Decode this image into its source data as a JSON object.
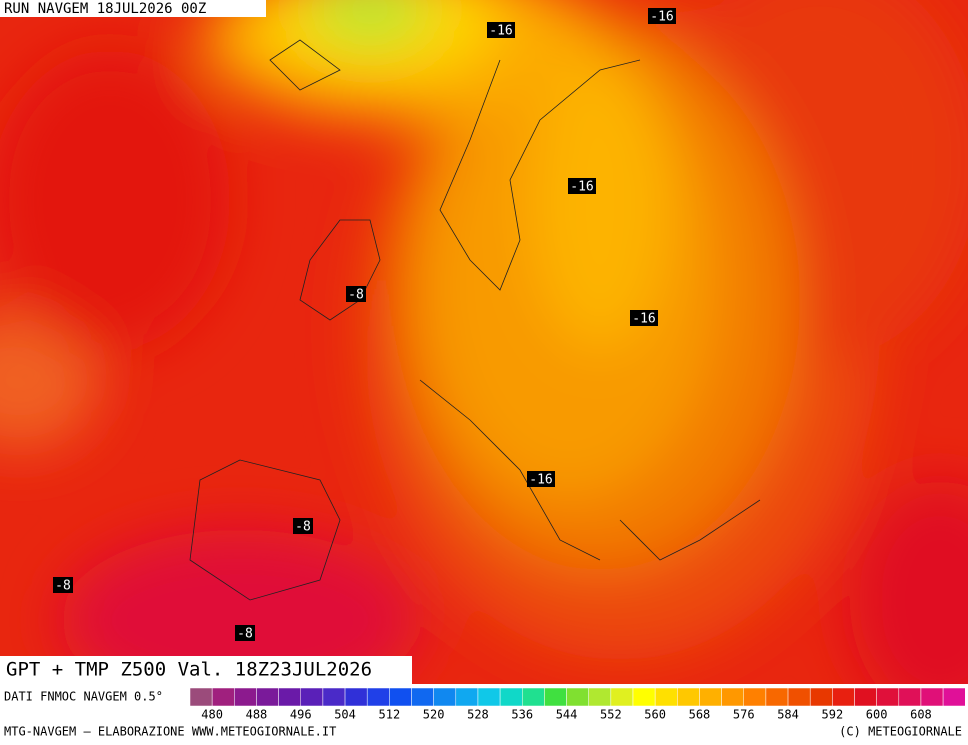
{
  "header": {
    "run": "RUN NAVGEM 18JUL2026 00Z"
  },
  "map_labels": [
    {
      "text": "-16"
    },
    {
      "text": "-16"
    },
    {
      "text": "-16"
    },
    {
      "text": "-16"
    },
    {
      "text": "-16"
    },
    {
      "text": "-8"
    },
    {
      "text": "-8"
    },
    {
      "text": "-8"
    },
    {
      "text": "-8"
    }
  ],
  "title": "GPT + TMP Z500 Val. 18Z23JUL2026",
  "legend": {
    "source": "DATI FNMOC NAVGEM 0.5°",
    "colors": [
      "#9b4b7b",
      "#a0207e",
      "#8c1a8e",
      "#7a1a9a",
      "#6a1aa8",
      "#5a20b8",
      "#4a2ac8",
      "#3030d8",
      "#2040e8",
      "#1050f0",
      "#1068f0",
      "#1088f0",
      "#10a8f0",
      "#10c8e8",
      "#10d8c8",
      "#20e090",
      "#40e040",
      "#80e030",
      "#b0e830",
      "#e0f020",
      "#ffff00",
      "#ffe000",
      "#ffc800",
      "#ffb000",
      "#ff9800",
      "#ff8000",
      "#f86800",
      "#f05000",
      "#e83800",
      "#e82010",
      "#e01020",
      "#e0103a",
      "#e01058",
      "#e01078",
      "#e01098"
    ],
    "ticks": [
      480,
      488,
      496,
      504,
      512,
      520,
      528,
      536,
      544,
      552,
      560,
      568,
      576,
      584,
      592,
      600,
      608
    ]
  },
  "footer": {
    "left": "MTG-NAVGEM – ELABORAZIONE WWW.METEOGIORNALE.IT",
    "right": "(C) METEOGIORNALE"
  }
}
